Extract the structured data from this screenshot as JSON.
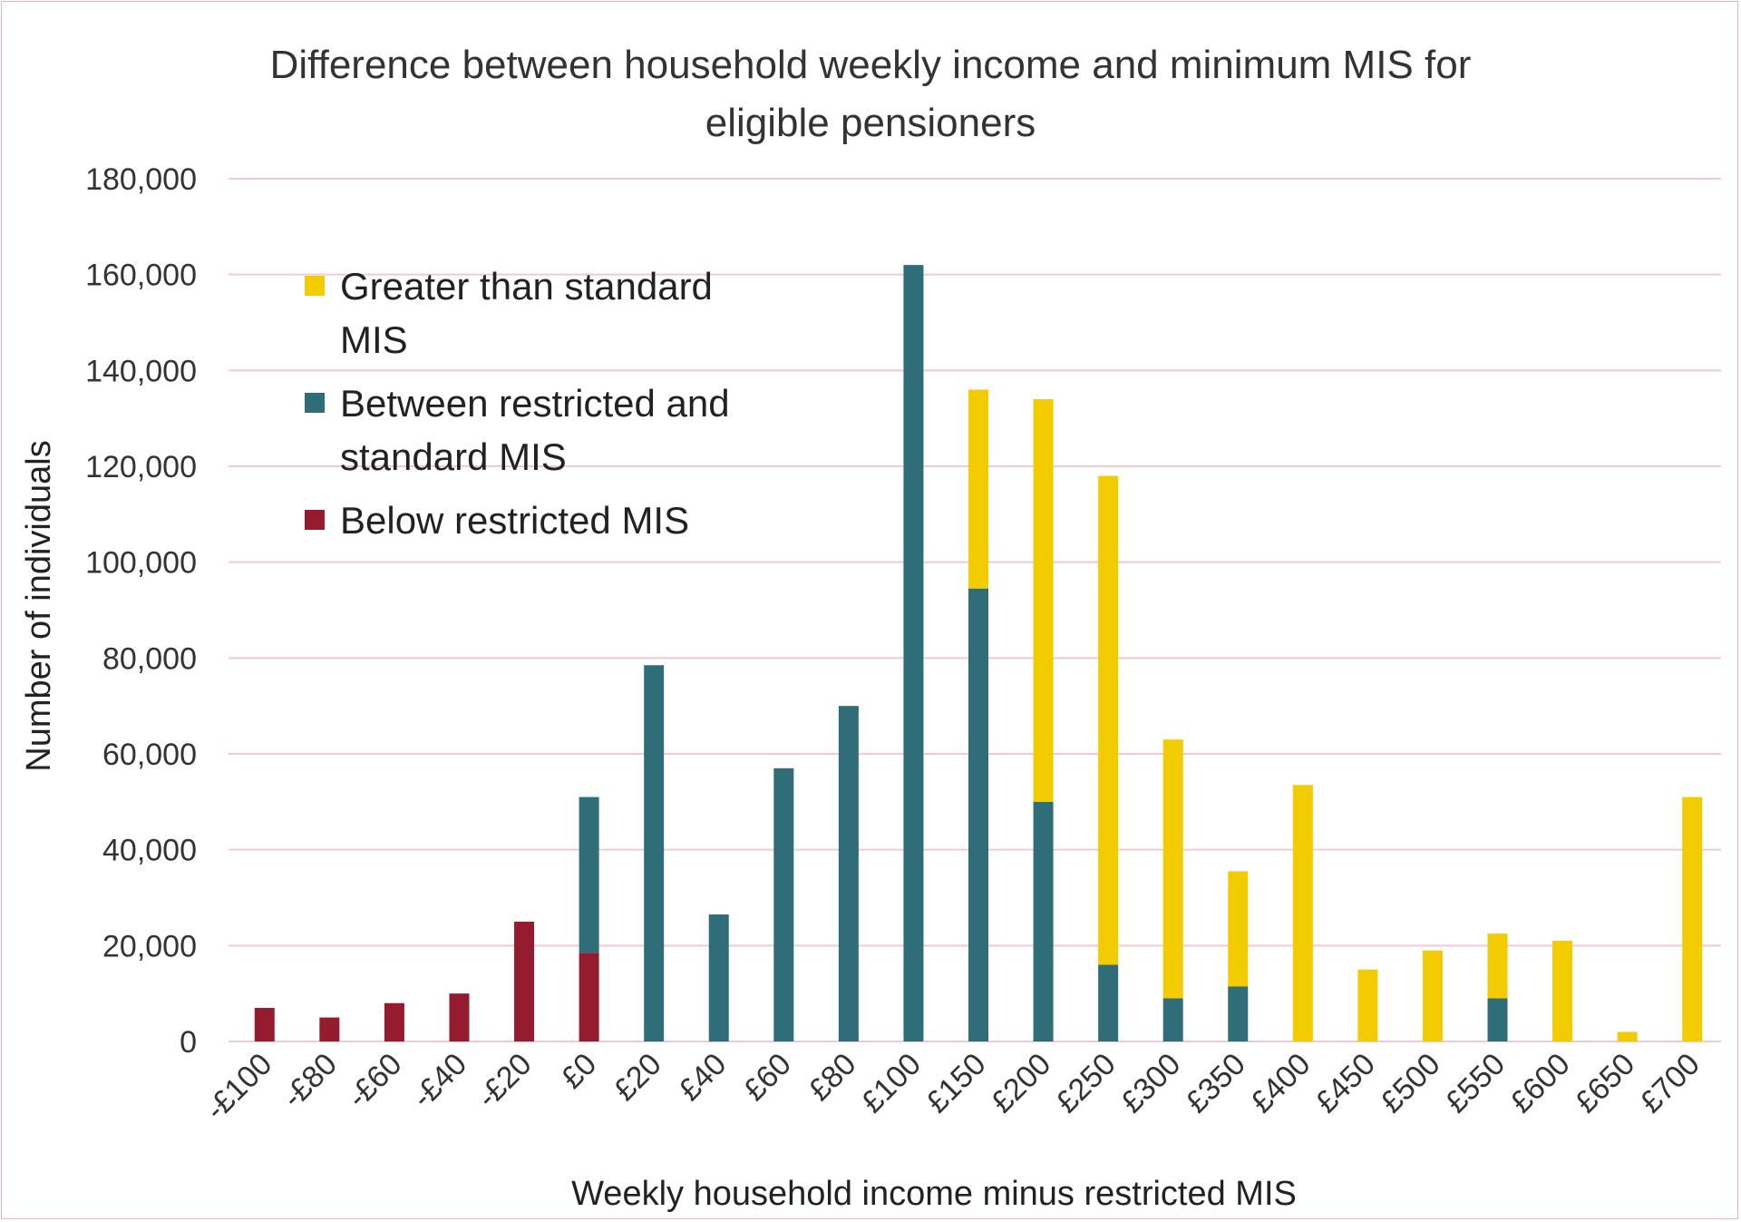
{
  "chart_data": {
    "type": "bar",
    "stacked": true,
    "title": "Difference between household weekly income and minimum MIS for\neligible pensioners",
    "xlabel": "Weekly household income minus restricted MIS",
    "ylabel": "Number of individuals",
    "ylim": [
      0,
      180000
    ],
    "yticks": [
      "0",
      "20,000",
      "40,000",
      "60,000",
      "80,000",
      "100,000",
      "120,000",
      "140,000",
      "160,000",
      "180,000"
    ],
    "grid": true,
    "legend_position": "top-left",
    "categories": [
      "-£100",
      "-£80",
      "-£60",
      "-£40",
      "-£20",
      "£0",
      "£20",
      "£40",
      "£60",
      "£80",
      "£100",
      "£150",
      "£200",
      "£250",
      "£300",
      "£350",
      "£400",
      "£450",
      "£500",
      "£550",
      "£600",
      "£650",
      "£700"
    ],
    "series": [
      {
        "name": "Below restricted MIS",
        "color": "#951b2e",
        "values": [
          7000,
          5000,
          8000,
          10000,
          25000,
          18500,
          0,
          0,
          0,
          0,
          0,
          0,
          0,
          0,
          0,
          0,
          0,
          0,
          0,
          0,
          0,
          0,
          0
        ]
      },
      {
        "name": "Between restricted and standard MIS",
        "color": "#2f6e78",
        "values": [
          0,
          0,
          0,
          0,
          0,
          32500,
          78500,
          26500,
          57000,
          70000,
          162000,
          94500,
          50000,
          16000,
          9000,
          11500,
          0,
          0,
          0,
          9000,
          0,
          0,
          0
        ]
      },
      {
        "name": "Greater than standard MIS",
        "color": "#f2cb00",
        "values": [
          0,
          0,
          0,
          0,
          0,
          0,
          0,
          0,
          0,
          0,
          0,
          41500,
          84000,
          102000,
          54000,
          24000,
          53500,
          15000,
          19000,
          13500,
          21000,
          2000,
          51000
        ]
      }
    ],
    "legend": [
      {
        "label": "Greater than standard\nMIS",
        "color": "#f2cb00"
      },
      {
        "label": "Between restricted and\nstandard MIS",
        "color": "#2f6e78"
      },
      {
        "label": "Below restricted MIS",
        "color": "#951b2e"
      }
    ],
    "grid_color": "#f2c9d1"
  }
}
